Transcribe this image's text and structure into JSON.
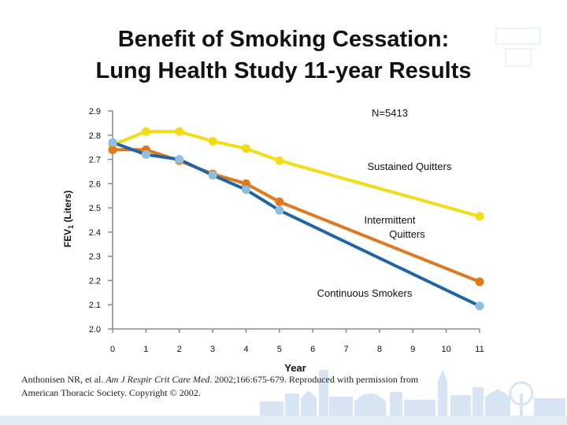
{
  "title": {
    "line1": "Benefit of Smoking Cessation:",
    "line2": "Lung Health Study 11-year Results"
  },
  "chart_data": {
    "type": "line",
    "xlabel": "Year",
    "ylabel": "FEV",
    "ylabel_sub": "1",
    "ylabel_unit": " (Liters)",
    "x": [
      0,
      1,
      2,
      3,
      4,
      5,
      6,
      7,
      8,
      9,
      10,
      11
    ],
    "xtick_labels": [
      "0",
      "1",
      "2",
      "3",
      "4",
      "5",
      "6",
      "7",
      "8",
      "9",
      "10",
      "11"
    ],
    "ytick_labels": [
      "2.9",
      "2.8",
      "2.7",
      "2.6",
      "2.5",
      "2.4",
      "2.3",
      "2.2",
      "2.1",
      "2.0"
    ],
    "ylim": [
      2.0,
      2.9
    ],
    "xlim": [
      0,
      11
    ],
    "annotation_n": "N=5413",
    "series": [
      {
        "name": "Sustained Quitters",
        "label_lines": [
          "Sustained Quitters"
        ],
        "color": "#f2dc16",
        "x": [
          0,
          1,
          2,
          3,
          4,
          5,
          11
        ],
        "values": [
          2.76,
          2.815,
          2.815,
          2.775,
          2.745,
          2.695,
          2.465
        ]
      },
      {
        "name": "Intermittent Quitters",
        "label_lines": [
          "Intermittent",
          "Quitters"
        ],
        "color": "#e07820",
        "x": [
          0,
          1,
          2,
          3,
          4,
          5,
          11
        ],
        "values": [
          2.74,
          2.74,
          2.695,
          2.64,
          2.6,
          2.525,
          2.195
        ]
      },
      {
        "name": "Continuous Smokers",
        "label_lines": [
          "Continuous Smokers"
        ],
        "color": "#1f65a6",
        "marker_color": "#8fbfe0",
        "x": [
          0,
          1,
          2,
          3,
          4,
          5,
          11
        ],
        "values": [
          2.77,
          2.72,
          2.7,
          2.635,
          2.575,
          2.49,
          2.095
        ]
      }
    ]
  },
  "citation": {
    "authors": "Anthonisen NR, et al. ",
    "journal": "Am J Respir Crit Care Med",
    "details": ". 2002;166:675-679. Reproduced with permission from",
    "line2": "American Thoracic Society. Copyright © 2002."
  },
  "colors": {
    "skyline_fill": "#d6e4f3",
    "skyline_base": "#e3ebf4"
  }
}
